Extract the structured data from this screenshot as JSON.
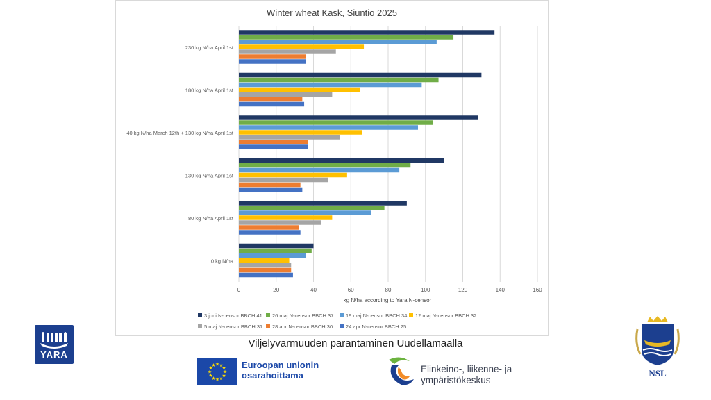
{
  "footer": {
    "project_text": "Viljelyvarmuuden parantaminen Uudellamaalla",
    "yara_logo_text": "YARA",
    "eu_line1": "Euroopan unionin",
    "eu_line2": "osarahoittama",
    "ely_line1": "Elinkeino-, liikenne- ja",
    "ely_line2": "ympäristökeskus",
    "nsl_text": "NSL"
  },
  "chart_data": {
    "type": "bar",
    "orientation": "horizontal",
    "title": "Winter wheat Kask, Siuntio 2025",
    "xlabel": "kg N/ha according to Yara N-censor",
    "ylabel": "",
    "xlim": [
      0,
      160
    ],
    "xticks": [
      0,
      20,
      40,
      60,
      80,
      100,
      120,
      140,
      160
    ],
    "grid": true,
    "legend_position": "bottom",
    "categories": [
      "230 kg N/ha April 1st",
      "180 kg N/ha April 1st",
      "40 kg N/ha March 12th + 130 kg N/ha April 1st",
      "130 kg N/ha April 1st",
      "80 kg N/ha April 1st",
      "0 kg N/ha"
    ],
    "series": [
      {
        "name": "3.juni N-censor BBCH 41",
        "color": "#203864",
        "values": [
          137,
          130,
          128,
          110,
          90,
          40
        ]
      },
      {
        "name": "26.maj N-censor BBCH 37",
        "color": "#70ad47",
        "values": [
          115,
          107,
          104,
          92,
          78,
          39
        ]
      },
      {
        "name": "19.maj N-censor BBCH 34",
        "color": "#5b9bd5",
        "values": [
          106,
          98,
          96,
          86,
          71,
          36
        ]
      },
      {
        "name": "12.maj N-censor BBCH 32",
        "color": "#ffc000",
        "values": [
          67,
          65,
          66,
          58,
          50,
          27
        ]
      },
      {
        "name": "5.maj N-censor BBCH 31",
        "color": "#a5a5a5",
        "values": [
          52,
          50,
          54,
          48,
          44,
          28
        ]
      },
      {
        "name": "28.apr N-censor BBCH 30",
        "color": "#ed7d31",
        "values": [
          36,
          34,
          37,
          33,
          32,
          28
        ]
      },
      {
        "name": "24.apr N-censor BBCH 25",
        "color": "#4472c4",
        "values": [
          36,
          35,
          37,
          34,
          33,
          29
        ]
      }
    ]
  }
}
